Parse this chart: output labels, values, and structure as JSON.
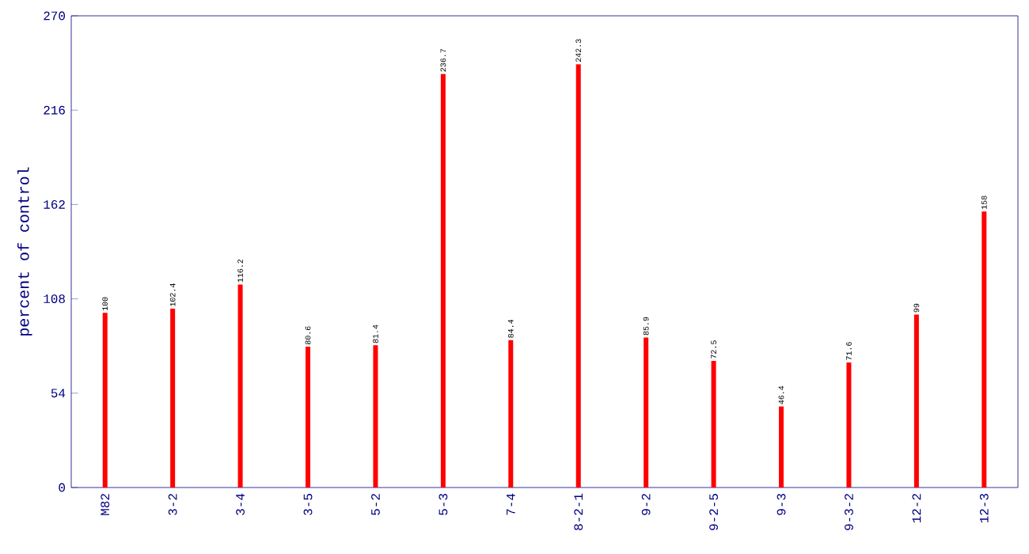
{
  "chart_data": {
    "type": "bar",
    "ylabel": "percent of control",
    "categories": [
      "M82",
      "3-2",
      "3-4",
      "3-5",
      "5-2",
      "5-3",
      "7-4",
      "8-2-1",
      "9-2",
      "9-2-5",
      "9-3",
      "9-3-2",
      "12-2",
      "12-3"
    ],
    "values": [
      100,
      102.4,
      116.2,
      80.6,
      81.4,
      236.7,
      84.4,
      242.3,
      85.9,
      72.5,
      46.4,
      71.6,
      99,
      158
    ],
    "color": "#ff0000",
    "ylim": [
      0,
      270
    ],
    "yticks": [
      0,
      54,
      108,
      162,
      216,
      270
    ],
    "data_labels": true
  }
}
